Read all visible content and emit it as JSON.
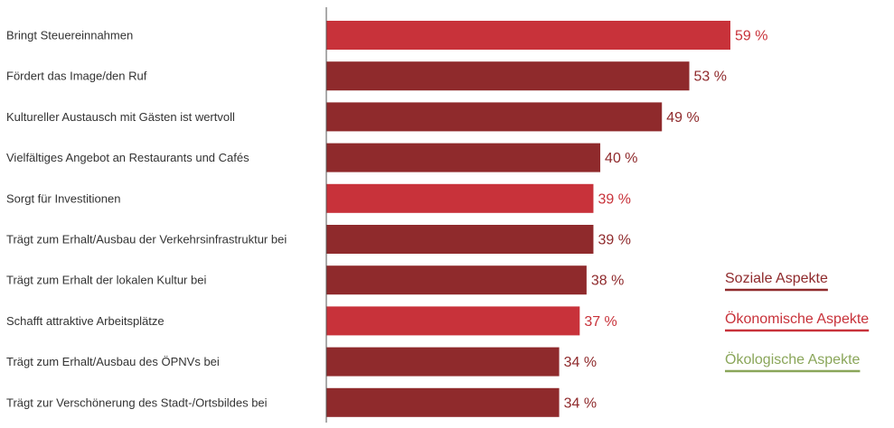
{
  "chart_data": {
    "type": "bar",
    "orientation": "horizontal",
    "categories": [
      "Bringt Steuereinnahmen",
      "Fördert das Image/den Ruf",
      "Kultureller Austausch mit Gästen ist wertvoll",
      "Vielfältiges Angebot an Restaurants und Cafés",
      "Sorgt für Investitionen",
      "Trägt zum Erhalt/Ausbau der Verkehrsinfrastruktur bei",
      "Trägt zum Erhalt der lokalen Kultur bei",
      "Schafft attraktive Arbeitsplätze",
      "Trägt zum Erhalt/Ausbau des ÖPNVs bei",
      "Trägt zur Verschönerung des Stadt-/Ortsbildes bei"
    ],
    "values": [
      59,
      53,
      49,
      40,
      39,
      39,
      38,
      37,
      34,
      34
    ],
    "value_labels": [
      "59 %",
      "53 %",
      "49 %",
      "40 %",
      "39 %",
      "39 %",
      "38 %",
      "37 %",
      "34 %",
      "34 %"
    ],
    "groups": [
      "oekonomisch",
      "sozial",
      "sozial",
      "sozial",
      "oekonomisch",
      "sozial",
      "sozial",
      "oekonomisch",
      "sozial",
      "sozial"
    ],
    "legend": [
      {
        "key": "sozial",
        "label": "Soziale Aspekte",
        "color": "#8f2a2c"
      },
      {
        "key": "oekonomisch",
        "label": "Ökonomische Aspekte",
        "color": "#c8323a"
      },
      {
        "key": "oekologisch",
        "label": "Ökologische Aspekte",
        "color": "#8aa65a"
      }
    ],
    "legend_position": "right",
    "xlim": [
      0,
      100
    ],
    "grid": false
  }
}
